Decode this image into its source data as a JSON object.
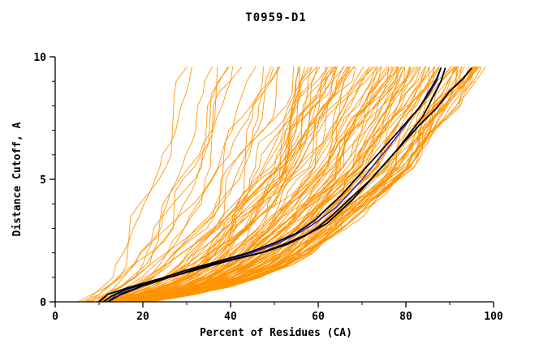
{
  "chart_data": {
    "type": "line",
    "title": "T0959-D1",
    "xlabel": "Percent of Residues (CA)",
    "ylabel": "Distance Cutoff, A",
    "xlim": [
      0,
      100
    ],
    "ylim": [
      0,
      10
    ],
    "x_major_ticks": [
      0,
      20,
      40,
      60,
      80,
      100
    ],
    "x_minor_ticks": [
      10,
      30,
      50,
      70,
      90
    ],
    "y_major_ticks": [
      0,
      5,
      10
    ],
    "y_minor_ticks": [
      1,
      2,
      3,
      4,
      6,
      7,
      8,
      9
    ],
    "grid": false,
    "legend": "none",
    "colors": {
      "ensemble": "#ff9200",
      "highlight": "#000000",
      "best": "#2a22c8",
      "frame": "#000000",
      "background": "#ffffff"
    },
    "ensemble": {
      "name": "predicted-models-ensemble",
      "count": 120,
      "seed": 1959,
      "skill_power": 0.35,
      "noise_amp": 3.0,
      "jitter": 1.2,
      "y_samples": [
        0,
        0.3,
        0.6,
        1.0,
        1.5,
        2.0,
        2.5,
        3.0,
        3.5,
        4.0,
        4.5,
        5.0,
        5.5,
        6.0,
        6.5,
        7.0,
        7.5,
        8.0,
        8.5,
        9.0,
        9.6
      ],
      "x_left": [
        3,
        4,
        5,
        6,
        7,
        8,
        9,
        10,
        11,
        12,
        12.5,
        13,
        13.5,
        14,
        14.5,
        15,
        15.5,
        16,
        16.5,
        17,
        18
      ],
      "x_right": [
        20,
        30,
        38,
        46,
        53,
        58,
        62,
        66,
        69,
        72,
        75,
        78,
        81,
        83,
        85,
        87,
        89,
        91,
        93,
        95,
        97
      ]
    },
    "highlight_series": [
      {
        "name": "model-black-1",
        "color": "#000000",
        "width": 1.8,
        "points": [
          [
            11,
            0
          ],
          [
            13,
            0.25
          ],
          [
            16,
            0.5
          ],
          [
            22,
            0.8
          ],
          [
            28,
            1.1
          ],
          [
            34,
            1.45
          ],
          [
            41,
            1.75
          ],
          [
            48,
            2.05
          ],
          [
            53,
            2.35
          ],
          [
            57,
            2.7
          ],
          [
            60,
            3.05
          ],
          [
            63,
            3.5
          ],
          [
            66,
            4.0
          ],
          [
            69,
            4.5
          ],
          [
            72,
            5.0
          ],
          [
            75,
            5.6
          ],
          [
            78,
            6.2
          ],
          [
            81,
            6.9
          ],
          [
            84,
            7.6
          ],
          [
            86,
            8.3
          ],
          [
            88,
            9.0
          ],
          [
            89,
            9.55
          ]
        ]
      },
      {
        "name": "model-black-2",
        "color": "#000000",
        "width": 1.8,
        "points": [
          [
            12,
            0
          ],
          [
            15,
            0.3
          ],
          [
            20,
            0.65
          ],
          [
            26,
            1.0
          ],
          [
            33,
            1.35
          ],
          [
            40,
            1.7
          ],
          [
            47,
            2.0
          ],
          [
            53,
            2.4
          ],
          [
            58,
            2.8
          ],
          [
            62,
            3.2
          ],
          [
            65,
            3.7
          ],
          [
            68,
            4.2
          ],
          [
            71,
            4.8
          ],
          [
            74,
            5.4
          ],
          [
            77,
            6.0
          ],
          [
            80,
            6.6
          ],
          [
            83,
            7.2
          ],
          [
            87,
            7.9
          ],
          [
            90,
            8.6
          ],
          [
            93,
            9.1
          ],
          [
            95,
            9.55
          ]
        ]
      },
      {
        "name": "model-black-3",
        "color": "#000000",
        "width": 1.8,
        "points": [
          [
            10,
            0
          ],
          [
            12,
            0.3
          ],
          [
            17,
            0.6
          ],
          [
            24,
            0.95
          ],
          [
            30,
            1.3
          ],
          [
            37,
            1.65
          ],
          [
            44,
            2.0
          ],
          [
            50,
            2.4
          ],
          [
            55,
            2.8
          ],
          [
            59,
            3.3
          ],
          [
            62,
            3.8
          ],
          [
            65,
            4.3
          ],
          [
            68,
            4.9
          ],
          [
            71,
            5.5
          ],
          [
            74,
            6.1
          ],
          [
            77,
            6.7
          ],
          [
            80,
            7.3
          ],
          [
            83,
            7.9
          ],
          [
            85,
            8.5
          ],
          [
            87,
            9.1
          ],
          [
            88,
            9.55
          ]
        ]
      },
      {
        "name": "model-blue",
        "color": "#2a22c8",
        "width": 1.5,
        "points": [
          [
            12,
            0
          ],
          [
            14,
            0.3
          ],
          [
            19,
            0.6
          ],
          [
            25,
            0.95
          ],
          [
            31,
            1.3
          ],
          [
            38,
            1.65
          ],
          [
            45,
            2.0
          ],
          [
            51,
            2.4
          ],
          [
            56,
            2.85
          ],
          [
            60,
            3.3
          ],
          [
            64,
            3.85
          ],
          [
            67,
            4.4
          ],
          [
            70,
            5.0
          ],
          [
            73,
            5.65
          ],
          [
            76,
            6.3
          ],
          [
            79,
            7.0
          ],
          [
            82,
            7.7
          ],
          [
            85,
            8.4
          ],
          [
            87,
            9.0
          ],
          [
            88,
            9.55
          ]
        ]
      }
    ]
  }
}
